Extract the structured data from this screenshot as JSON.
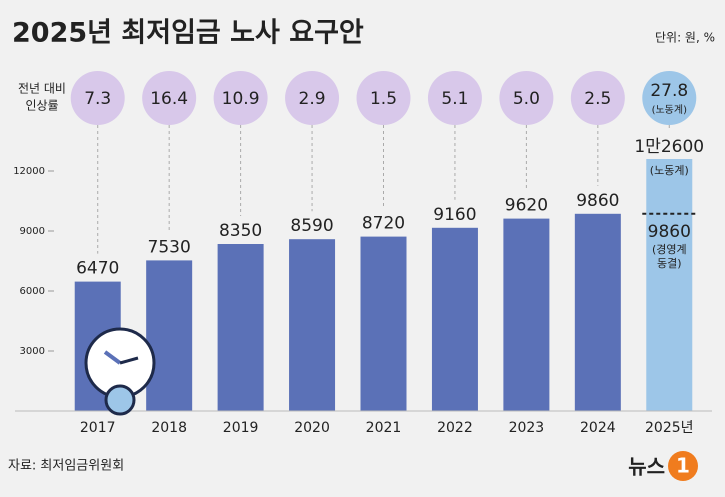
{
  "chart_data": {
    "type": "bar",
    "title": "2025년 최저임금 노사 요구안",
    "unit": "단위: 원, %",
    "source": "자료: 최저임금위원회",
    "logo": [
      "뉴스",
      "1"
    ],
    "rate_label": [
      "전년 대비",
      "인상률"
    ],
    "categories": [
      "2017",
      "2018",
      "2019",
      "2020",
      "2021",
      "2022",
      "2023",
      "2024",
      "2025년"
    ],
    "values": [
      6470,
      7530,
      8350,
      8590,
      8720,
      9160,
      9620,
      9860,
      null
    ],
    "color": "#5b71b7",
    "rates": [
      7.3,
      16.4,
      10.9,
      2.9,
      1.5,
      5.1,
      5.0,
      2.5,
      27.8
    ],
    "rate_labels": [
      "7.3",
      "16.4",
      "10.9",
      "2.9",
      "1.5",
      "5.1",
      "5.0",
      "2.5",
      "27.8"
    ],
    "rate_note": "(노동계)",
    "labor_demand": {
      "value": 12600,
      "value_label": "1만2600",
      "note": "(노동계)",
      "color": "#9dc6e8"
    },
    "management_proposal": {
      "value": 9860,
      "note_lines": [
        "(경영계",
        "동결)"
      ]
    },
    "ylim": [
      0,
      14000
    ],
    "yticks": [
      3000,
      6000,
      9000,
      12000
    ]
  }
}
